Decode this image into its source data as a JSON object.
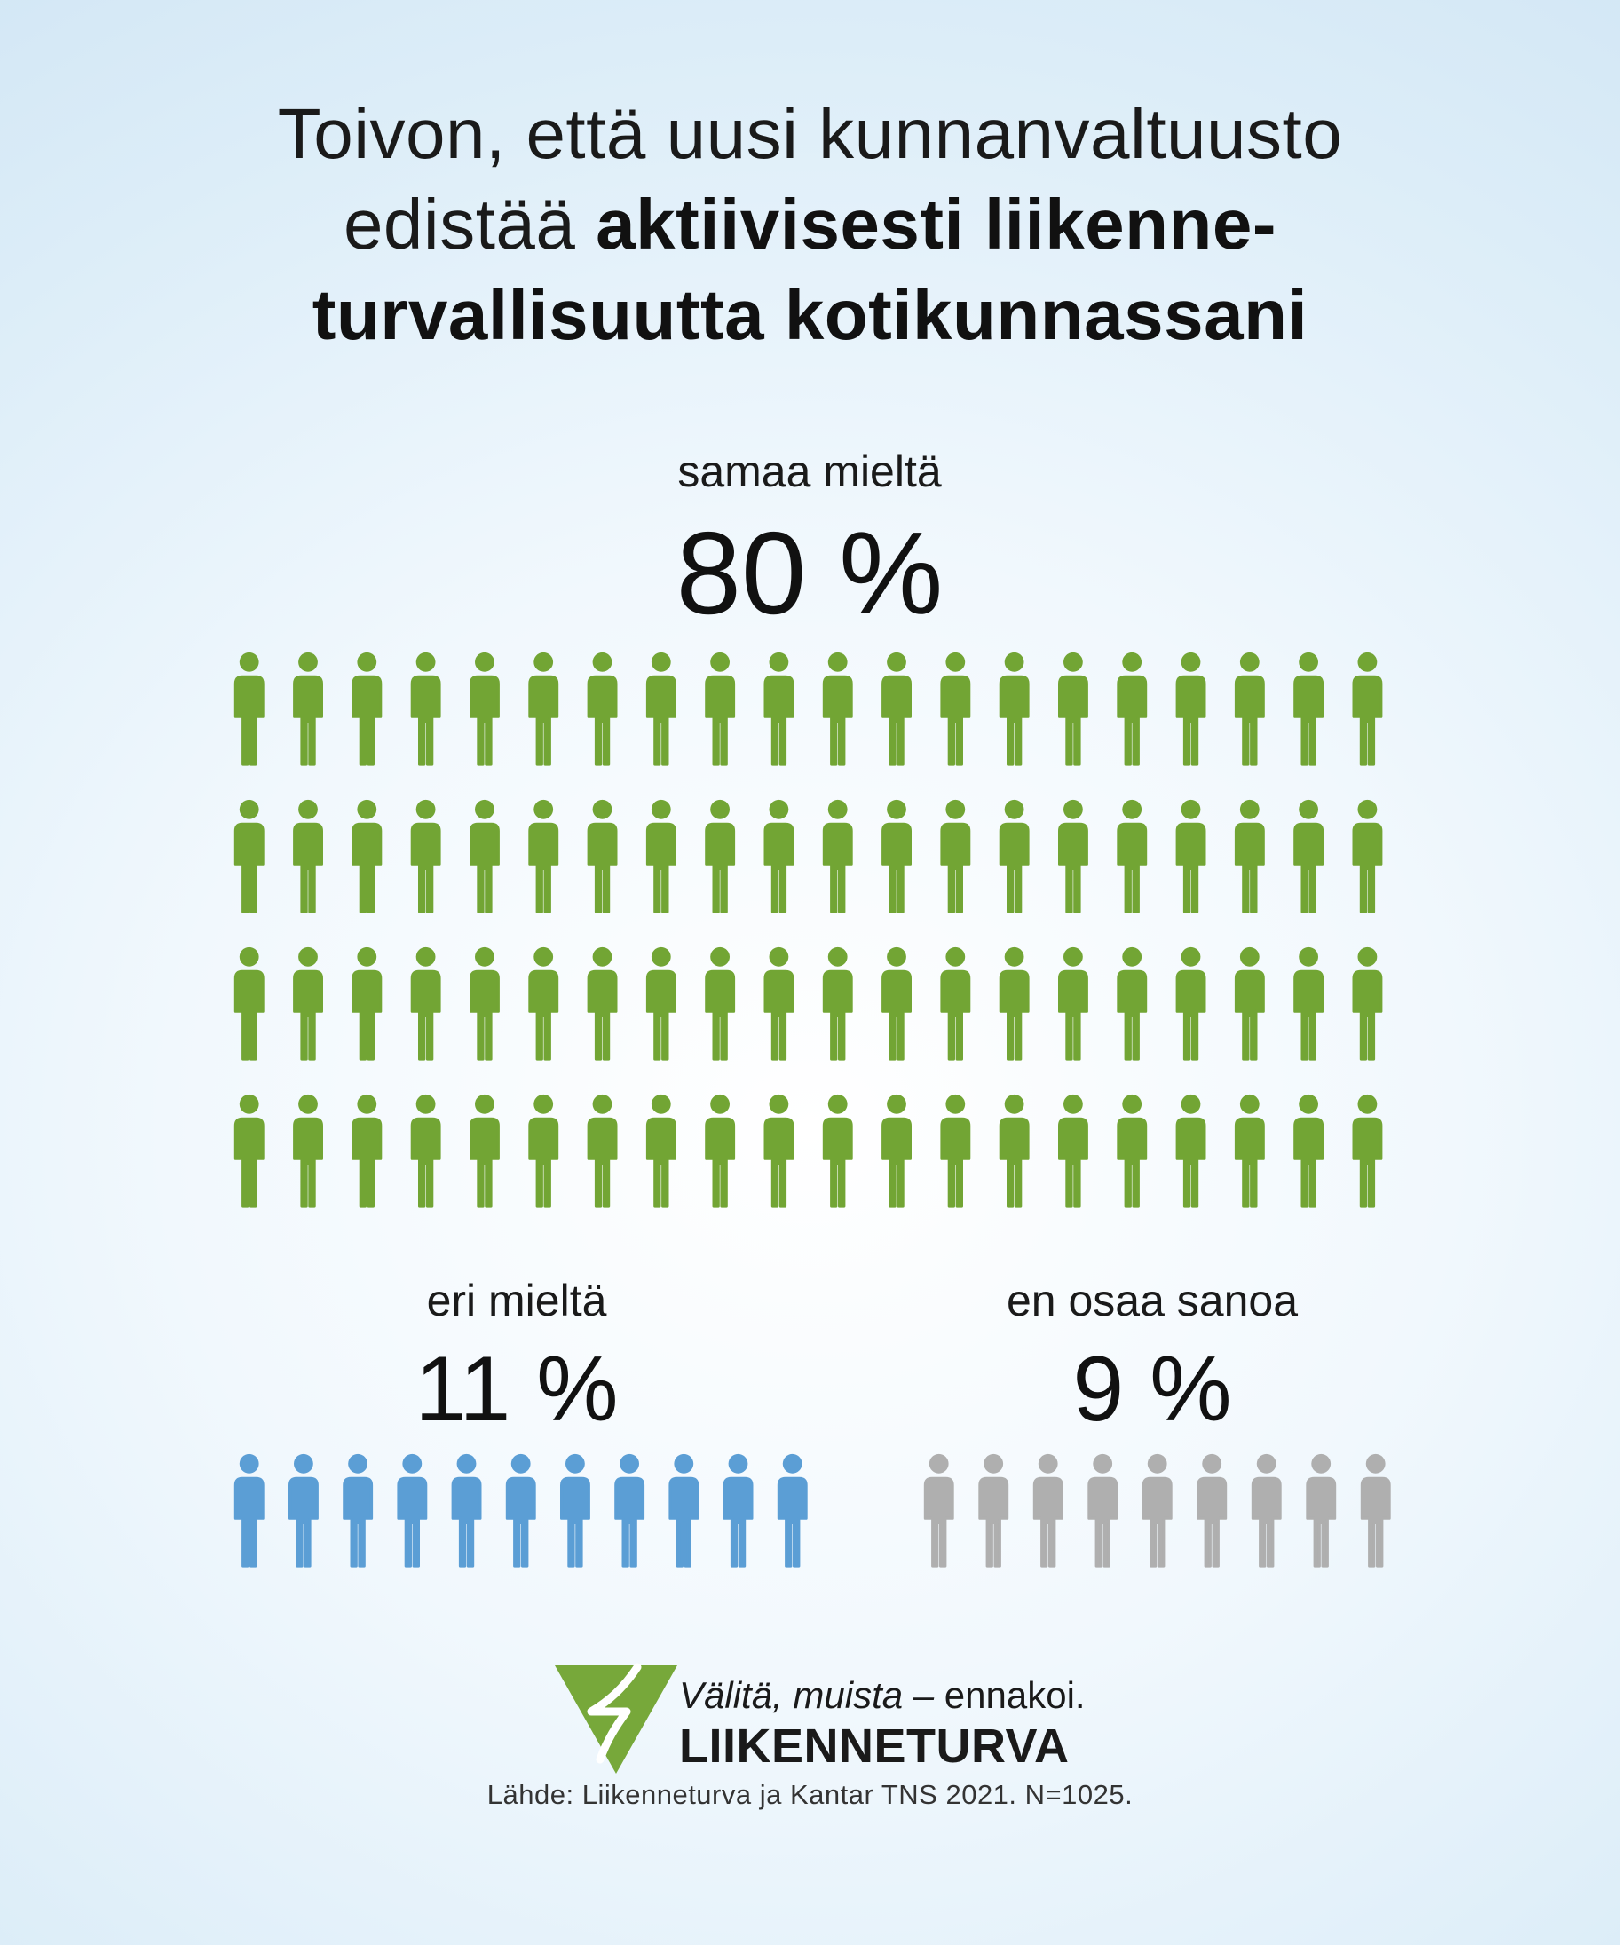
{
  "title": {
    "line1": "Toivon, että uusi kunnanvaltuusto",
    "line2_regular": "edistää ",
    "line2_bold": "aktiivisesti liikenne-",
    "line3_bold": "turvallisuutta kotikunnassani"
  },
  "chart_data": {
    "type": "pictograph",
    "unit": "one figure = 1 %",
    "categories": [
      "samaa mieltä",
      "eri mieltä",
      "en osaa sanoa"
    ],
    "values": [
      80,
      11,
      9
    ],
    "value_labels": [
      "80 %",
      "11 %",
      "9 %"
    ],
    "colors": [
      "#72a534",
      "#5b9ed5",
      "#afafaf"
    ]
  },
  "groups": {
    "agree": {
      "label": "samaa mieltä",
      "pct_label": "80 %",
      "count": 80,
      "color": "#72a534"
    },
    "disagree": {
      "label": "eri mieltä",
      "pct_label": "11 %",
      "count": 11,
      "color": "#5b9ed5"
    },
    "unsure": {
      "label": "en osaa sanoa",
      "pct_label": "9 %",
      "count": 9,
      "color": "#afafaf"
    }
  },
  "logo": {
    "slogan_italic": "Välitä, muista –",
    "slogan_plain": " ennakoi.",
    "brand": "LIIKENNETURVA",
    "color": "#77a83a"
  },
  "source": "Lähde: Liikenneturva ja Kantar TNS 2021. N=1025."
}
